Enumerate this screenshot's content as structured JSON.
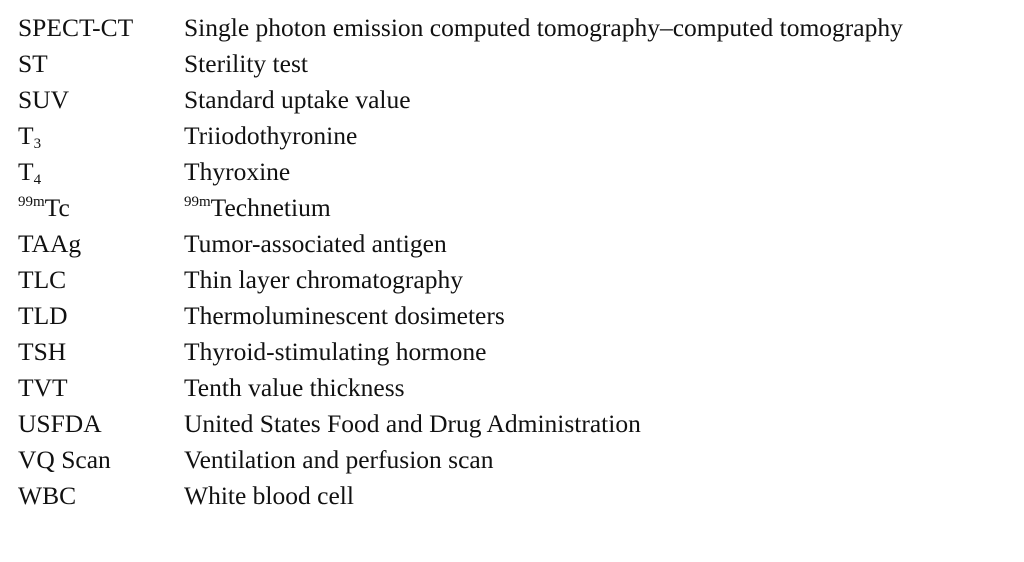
{
  "abbreviations": [
    {
      "term": "SPECT-CT",
      "definition": "Single photon emission computed tomography–computed tomography"
    },
    {
      "term": "ST",
      "definition": "Sterility test"
    },
    {
      "term": "SUV",
      "definition": "Standard uptake value"
    },
    {
      "term_main": "T",
      "term_sub": "3",
      "definition": "Triiodothyronine"
    },
    {
      "term_main": "T",
      "term_sub": "4",
      "definition": "Thyroxine"
    },
    {
      "term_sup": "99m",
      "term_main": "Tc",
      "definition_sup": "99m",
      "definition_main": "Technetium"
    },
    {
      "term": "TAAg",
      "definition": "Tumor-associated antigen"
    },
    {
      "term": "TLC",
      "definition": "Thin layer chromatography"
    },
    {
      "term": "TLD",
      "definition": "Thermoluminescent dosimeters"
    },
    {
      "term": "TSH",
      "definition": "Thyroid-stimulating hormone"
    },
    {
      "term": "TVT",
      "definition": "Tenth value thickness"
    },
    {
      "term": "USFDA",
      "definition": "United States Food and Drug Administration"
    },
    {
      "term": "VQ Scan",
      "definition": "Ventilation and perfusion scan"
    },
    {
      "term": "WBC",
      "definition": "White blood cell"
    }
  ]
}
